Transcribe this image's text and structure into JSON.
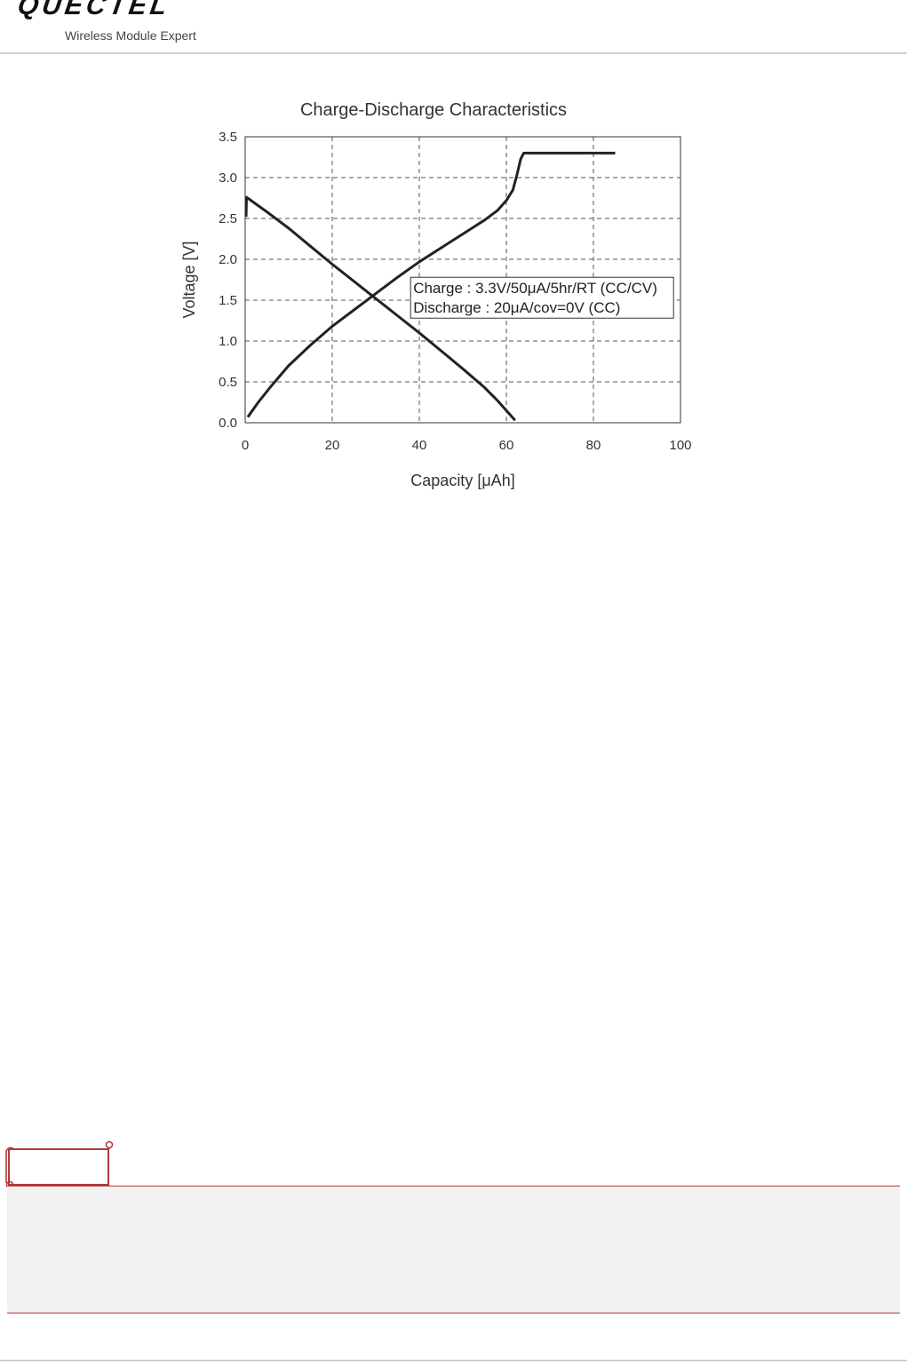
{
  "header": {
    "brand": "QUECTEL",
    "tagline": "Wireless Module Expert"
  },
  "colors": {
    "series_line": "#222222",
    "grid": "#555555",
    "note_border": "#b23a3a",
    "note_fill": "#f1f1f1"
  },
  "chart_data": {
    "type": "line",
    "title": "Charge-Discharge Characteristics",
    "xlabel": "Capacity [μAh]",
    "ylabel": "Voltage [V]",
    "xlim": [
      0,
      100
    ],
    "ylim": [
      0,
      3.5
    ],
    "x_ticks": [
      "0",
      "20",
      "40",
      "60",
      "80",
      "100"
    ],
    "y_ticks": [
      "0.0",
      "0.5",
      "1.0",
      "1.5",
      "2.0",
      "2.5",
      "3.0",
      "3.5"
    ],
    "grid": "dashed",
    "legend_position": "center-right",
    "legend_entries": [
      "Charge : 3.3V/50μA/5hr/RT (CC/CV)",
      "Discharge : 20μA/cov=0V (CC)"
    ],
    "series": [
      {
        "points": [
          [
            0.6,
            0.07
          ],
          [
            3,
            0.25
          ],
          [
            6,
            0.45
          ],
          [
            10,
            0.7
          ],
          [
            15,
            0.95
          ],
          [
            20,
            1.18
          ],
          [
            25,
            1.38
          ],
          [
            30,
            1.58
          ],
          [
            35,
            1.78
          ],
          [
            40,
            1.97
          ],
          [
            45,
            2.14
          ],
          [
            50,
            2.31
          ],
          [
            55,
            2.48
          ],
          [
            58,
            2.6
          ],
          [
            60,
            2.72
          ],
          [
            61.5,
            2.85
          ],
          [
            62.5,
            3.05
          ],
          [
            63.3,
            3.23
          ],
          [
            64,
            3.3
          ],
          [
            85,
            3.3
          ]
        ]
      },
      {
        "points": [
          [
            0.2,
            2.52
          ],
          [
            0.3,
            2.76
          ],
          [
            5,
            2.58
          ],
          [
            10,
            2.38
          ],
          [
            15,
            2.16
          ],
          [
            20,
            1.94
          ],
          [
            25,
            1.73
          ],
          [
            30,
            1.52
          ],
          [
            35,
            1.31
          ],
          [
            40,
            1.1
          ],
          [
            45,
            0.88
          ],
          [
            50,
            0.66
          ],
          [
            55,
            0.43
          ],
          [
            58,
            0.27
          ],
          [
            60,
            0.15
          ],
          [
            62,
            0.03
          ]
        ]
      }
    ]
  }
}
